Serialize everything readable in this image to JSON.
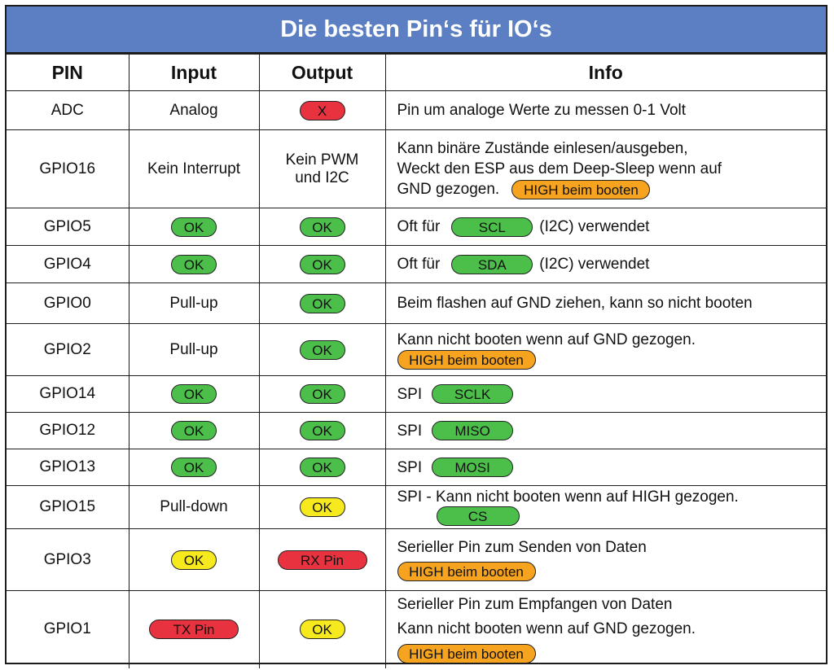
{
  "title": "Die besten Pin‘s für IO‘s",
  "headers": {
    "pin": "PIN",
    "input": "Input",
    "output": "Output",
    "info": "Info"
  },
  "colors": {
    "header_bg": "#5b7fc2",
    "ok_green": "#4bbf4a",
    "ok_yellow": "#f6ea1e",
    "red": "#e8323f",
    "orange": "#f6a31f"
  },
  "rows": [
    {
      "pin": "ADC",
      "input": "Analog",
      "output": "X",
      "info": [
        "Pin um analoge Werte zu messen 0-1 Volt"
      ]
    },
    {
      "pin": "GPIO16",
      "input": "Kein Interrupt",
      "output": [
        "Kein PWM",
        "und I2C"
      ],
      "info": [
        "Kann binäre Zustände einlesen/ausgeben,",
        "Weckt den ESP aus dem Deep-Sleep wenn auf",
        "GND gezogen."
      ],
      "badge": "HIGH beim booten"
    },
    {
      "pin": "GPIO5",
      "input": "OK",
      "output": "OK",
      "info": [
        "Oft für",
        "SCL",
        "(I2C) verwendet"
      ]
    },
    {
      "pin": "GPIO4",
      "input": "OK",
      "output": "OK",
      "info": [
        "Oft für",
        "SDA",
        "(I2C) verwendet"
      ]
    },
    {
      "pin": "GPIO0",
      "input": "Pull-up",
      "output": "OK",
      "info": [
        "Beim flashen auf GND ziehen, kann so nicht booten"
      ]
    },
    {
      "pin": "GPIO2",
      "input": "Pull-up",
      "output": "OK",
      "info": [
        "Kann nicht booten wenn auf GND gezogen."
      ],
      "badge": "HIGH beim booten"
    },
    {
      "pin": "GPIO14",
      "input": "OK",
      "output": "OK",
      "info": [
        "SPI",
        "SCLK"
      ]
    },
    {
      "pin": "GPIO12",
      "input": "OK",
      "output": "OK",
      "info": [
        "SPI",
        "MISO"
      ]
    },
    {
      "pin": "GPIO13",
      "input": "OK",
      "output": "OK",
      "info": [
        "SPI",
        "MOSI"
      ]
    },
    {
      "pin": "GPIO15",
      "input": "Pull-down",
      "output": "OK",
      "info": [
        "SPI - Kann nicht booten wenn auf HIGH gezogen.",
        "CS"
      ]
    },
    {
      "pin": "GPIO3",
      "input": "OK",
      "output": "RX Pin",
      "info": [
        "Serieller Pin zum Senden von Daten"
      ],
      "badge": "HIGH beim booten"
    },
    {
      "pin": "GPIO1",
      "input": "TX Pin",
      "output": "OK",
      "info": [
        "Serieller Pin zum Empfangen von Daten",
        "Kann nicht booten wenn auf GND gezogen."
      ],
      "badge": "HIGH beim booten"
    }
  ]
}
